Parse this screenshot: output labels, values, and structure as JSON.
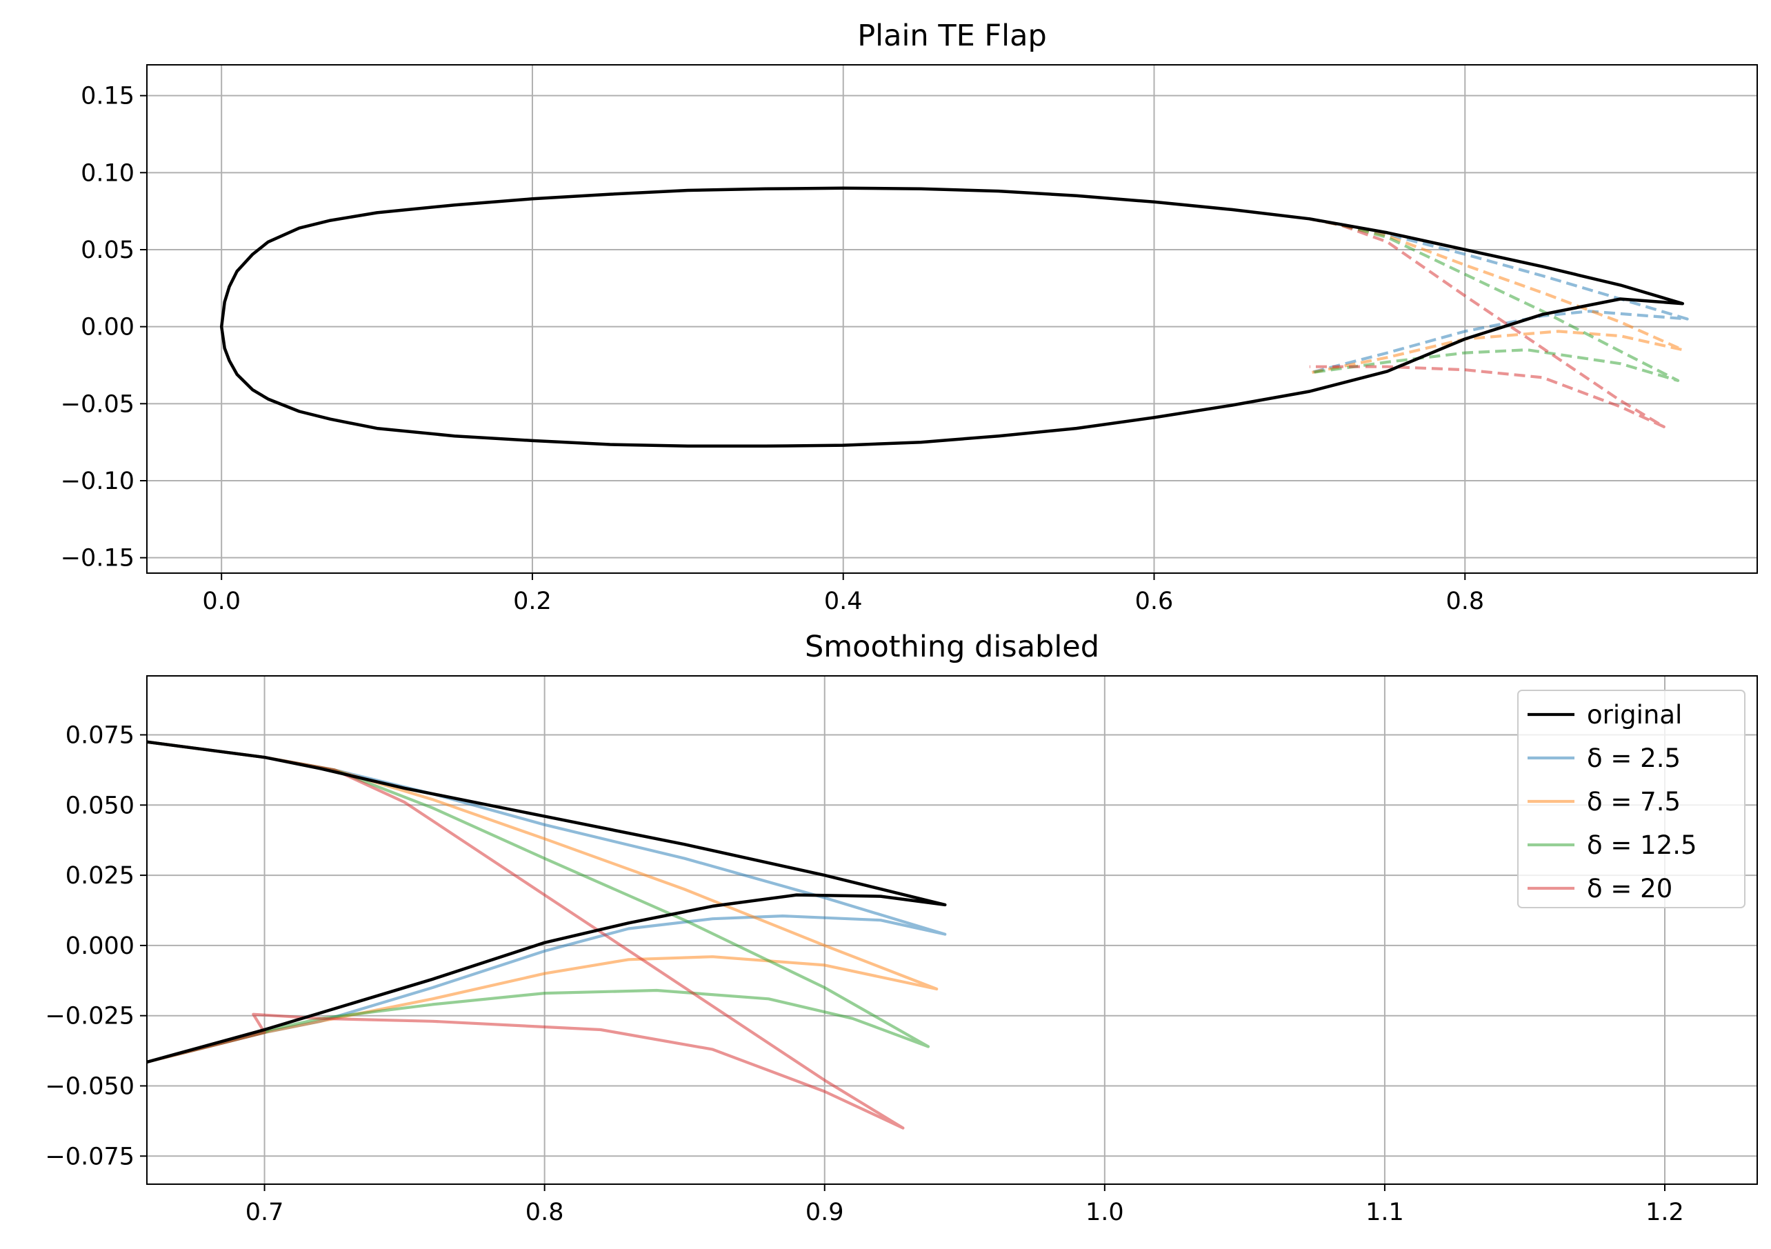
{
  "chart_data": [
    {
      "type": "line",
      "title": "Plain TE Flap",
      "xlabel": "",
      "ylabel": "",
      "xlim": [
        -0.048,
        0.988
      ],
      "ylim": [
        -0.16,
        0.17
      ],
      "xticks": [
        0.0,
        0.2,
        0.4,
        0.6,
        0.8
      ],
      "xtick_labels": [
        "0.0",
        "0.2",
        "0.4",
        "0.6",
        "0.8"
      ],
      "yticks": [
        -0.15,
        -0.1,
        -0.05,
        0.0,
        0.05,
        0.1,
        0.15
      ],
      "ytick_labels": [
        "−0.15",
        "−0.10",
        "−0.05",
        "0.00",
        "0.05",
        "0.10",
        "0.15"
      ],
      "grid": true,
      "series": [
        {
          "name": "original",
          "color": "#000000",
          "style": "solid",
          "x": [
            0.94,
            0.9,
            0.85,
            0.8,
            0.75,
            0.7,
            0.65,
            0.6,
            0.55,
            0.5,
            0.45,
            0.4,
            0.35,
            0.3,
            0.25,
            0.2,
            0.15,
            0.1,
            0.07,
            0.05,
            0.03,
            0.02,
            0.01,
            0.005,
            0.002,
            0.0,
            0.002,
            0.005,
            0.01,
            0.02,
            0.03,
            0.05,
            0.07,
            0.1,
            0.15,
            0.2,
            0.25,
            0.3,
            0.35,
            0.4,
            0.45,
            0.5,
            0.55,
            0.6,
            0.65,
            0.7,
            0.75,
            0.8,
            0.85,
            0.9,
            0.94
          ],
          "y": [
            0.015,
            0.027,
            0.039,
            0.05,
            0.061,
            0.07,
            0.076,
            0.081,
            0.085,
            0.088,
            0.0895,
            0.09,
            0.0895,
            0.0885,
            0.086,
            0.083,
            0.079,
            0.074,
            0.069,
            0.064,
            0.055,
            0.047,
            0.036,
            0.026,
            0.016,
            0.0,
            -0.014,
            -0.022,
            -0.031,
            -0.041,
            -0.047,
            -0.055,
            -0.06,
            -0.066,
            -0.071,
            -0.074,
            -0.0765,
            -0.0775,
            -0.0775,
            -0.077,
            -0.075,
            -0.071,
            -0.066,
            -0.059,
            -0.051,
            -0.042,
            -0.029,
            -0.008,
            0.008,
            0.018,
            0.015
          ]
        },
        {
          "name": "δ = 2.5",
          "color": "#1f77b4",
          "style": "dashed",
          "x": [
            0.7,
            0.72,
            0.75,
            0.8,
            0.85,
            0.9,
            0.943,
            0.88,
            0.85,
            0.8,
            0.75,
            0.7
          ],
          "y": [
            0.07,
            0.066,
            0.06,
            0.047,
            0.033,
            0.018,
            0.005,
            0.01,
            0.007,
            -0.003,
            -0.017,
            -0.03
          ]
        },
        {
          "name": "δ = 7.5",
          "color": "#ff7f0e",
          "style": "dashed",
          "x": [
            0.7,
            0.72,
            0.75,
            0.8,
            0.85,
            0.9,
            0.94,
            0.9,
            0.86,
            0.8,
            0.75,
            0.7
          ],
          "y": [
            0.07,
            0.066,
            0.059,
            0.04,
            0.022,
            0.003,
            -0.015,
            -0.006,
            -0.003,
            -0.008,
            -0.02,
            -0.03
          ]
        },
        {
          "name": "δ = 12.5",
          "color": "#2ca02c",
          "style": "dashed",
          "x": [
            0.7,
            0.72,
            0.75,
            0.8,
            0.85,
            0.9,
            0.937,
            0.9,
            0.84,
            0.8,
            0.75,
            0.7
          ],
          "y": [
            0.07,
            0.066,
            0.058,
            0.034,
            0.01,
            -0.016,
            -0.035,
            -0.024,
            -0.015,
            -0.017,
            -0.023,
            -0.03
          ]
        },
        {
          "name": "δ = 20",
          "color": "#d62728",
          "style": "dashed",
          "x": [
            0.7,
            0.72,
            0.75,
            0.8,
            0.85,
            0.9,
            0.928,
            0.9,
            0.85,
            0.8,
            0.75,
            0.7
          ],
          "y": [
            0.07,
            0.066,
            0.055,
            0.02,
            -0.014,
            -0.048,
            -0.065,
            -0.052,
            -0.033,
            -0.028,
            -0.026,
            -0.026
          ]
        }
      ]
    },
    {
      "type": "line",
      "title": "Smoothing disabled",
      "xlabel": "",
      "ylabel": "",
      "xlim": [
        0.658,
        1.233
      ],
      "ylim": [
        -0.085,
        0.096
      ],
      "xticks": [
        0.7,
        0.8,
        0.9,
        1.0,
        1.1,
        1.2
      ],
      "xtick_labels": [
        "0.7",
        "0.8",
        "0.9",
        "1.0",
        "1.1",
        "1.2"
      ],
      "yticks": [
        -0.075,
        -0.05,
        -0.025,
        0.0,
        0.025,
        0.05,
        0.075
      ],
      "ytick_labels": [
        "−0.075",
        "−0.050",
        "−0.025",
        "0.000",
        "0.025",
        "0.050",
        "0.075"
      ],
      "grid": true,
      "legend_placement": "top-right",
      "series": [
        {
          "name": "original",
          "color": "#000000",
          "style": "solid",
          "x": [
            0.658,
            0.7,
            0.72,
            0.75,
            0.8,
            0.85,
            0.9,
            0.943,
            0.92,
            0.89,
            0.86,
            0.83,
            0.8,
            0.76,
            0.72,
            0.7,
            0.658
          ],
          "y": [
            0.0725,
            0.067,
            0.063,
            0.056,
            0.046,
            0.036,
            0.025,
            0.0145,
            0.0175,
            0.018,
            0.014,
            0.008,
            0.001,
            -0.012,
            -0.024,
            -0.03,
            -0.0415
          ]
        },
        {
          "name": "δ = 2.5",
          "color": "#1f77b4",
          "style": "solid",
          "x": [
            0.658,
            0.7,
            0.725,
            0.76,
            0.8,
            0.85,
            0.9,
            0.943,
            0.92,
            0.885,
            0.86,
            0.83,
            0.8,
            0.76,
            0.72,
            0.7,
            0.658
          ],
          "y": [
            0.0725,
            0.067,
            0.0625,
            0.054,
            0.043,
            0.031,
            0.017,
            0.004,
            0.009,
            0.0105,
            0.0095,
            0.006,
            -0.002,
            -0.015,
            -0.027,
            -0.031,
            -0.0415
          ]
        },
        {
          "name": "δ = 7.5",
          "color": "#ff7f0e",
          "style": "solid",
          "x": [
            0.658,
            0.7,
            0.725,
            0.76,
            0.8,
            0.85,
            0.9,
            0.94,
            0.9,
            0.86,
            0.83,
            0.8,
            0.76,
            0.72,
            0.7,
            0.658
          ],
          "y": [
            0.0725,
            0.067,
            0.0625,
            0.052,
            0.038,
            0.02,
            0.0,
            -0.0155,
            -0.007,
            -0.004,
            -0.005,
            -0.01,
            -0.019,
            -0.027,
            -0.031,
            -0.0415
          ]
        },
        {
          "name": "δ = 12.5",
          "color": "#2ca02c",
          "style": "solid",
          "x": [
            0.658,
            0.7,
            0.725,
            0.76,
            0.8,
            0.85,
            0.9,
            0.937,
            0.91,
            0.88,
            0.84,
            0.8,
            0.76,
            0.72,
            0.702,
            0.7,
            0.658
          ],
          "y": [
            0.0725,
            0.067,
            0.0625,
            0.049,
            0.031,
            0.009,
            -0.015,
            -0.036,
            -0.026,
            -0.019,
            -0.016,
            -0.017,
            -0.021,
            -0.026,
            -0.03,
            -0.031,
            -0.0415
          ]
        },
        {
          "name": "δ = 20",
          "color": "#d62728",
          "style": "solid",
          "x": [
            0.658,
            0.7,
            0.725,
            0.75,
            0.8,
            0.85,
            0.9,
            0.928,
            0.9,
            0.86,
            0.82,
            0.8,
            0.76,
            0.72,
            0.696,
            0.7,
            0.658
          ],
          "y": [
            0.0725,
            0.067,
            0.0625,
            0.051,
            0.018,
            -0.015,
            -0.048,
            -0.065,
            -0.052,
            -0.037,
            -0.03,
            -0.029,
            -0.027,
            -0.026,
            -0.0245,
            -0.031,
            -0.0415
          ]
        }
      ]
    }
  ]
}
